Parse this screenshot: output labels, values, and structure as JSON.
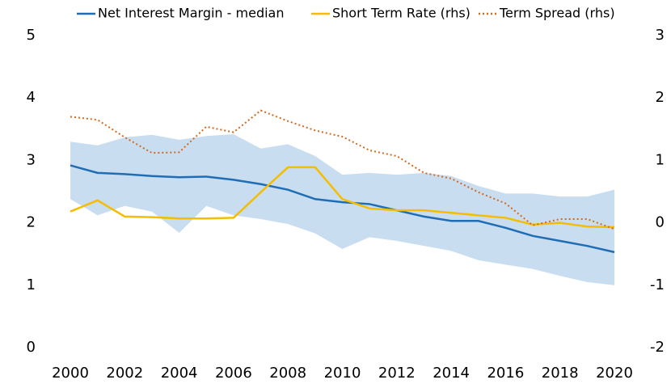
{
  "chart_data": {
    "type": "line",
    "x": [
      2000,
      2001,
      2002,
      2003,
      2004,
      2005,
      2006,
      2007,
      2008,
      2009,
      2010,
      2011,
      2012,
      2013,
      2014,
      2015,
      2016,
      2017,
      2018,
      2019,
      2020
    ],
    "xlim": [
      2000,
      2020
    ],
    "xticks": [
      2000,
      2002,
      2004,
      2006,
      2008,
      2010,
      2012,
      2014,
      2016,
      2018,
      2020
    ],
    "ylim": [
      0,
      5
    ],
    "yticks": [
      0,
      1,
      2,
      3,
      4,
      5
    ],
    "y2lim": [
      -2,
      3
    ],
    "y2ticks": [
      -2,
      -1,
      0,
      1,
      2,
      3
    ],
    "band": {
      "color": "#c9ddf1",
      "upper": [
        3.3,
        3.24,
        3.37,
        3.41,
        3.33,
        3.39,
        3.42,
        3.19,
        3.26,
        3.07,
        2.77,
        2.8,
        2.77,
        2.8,
        2.75,
        2.59,
        2.47,
        2.47,
        2.42,
        2.42,
        2.53
      ],
      "lower": [
        2.38,
        2.12,
        2.27,
        2.18,
        1.84,
        2.27,
        2.12,
        2.06,
        1.98,
        1.83,
        1.58,
        1.77,
        1.71,
        1.63,
        1.55,
        1.4,
        1.33,
        1.26,
        1.15,
        1.05,
        1.0
      ]
    },
    "series": [
      {
        "name": "Net Interest Margin - median",
        "color": "#1f6db4",
        "values": [
          2.92,
          2.8,
          2.78,
          2.75,
          2.73,
          2.74,
          2.69,
          2.62,
          2.53,
          2.38,
          2.33,
          2.3,
          2.2,
          2.1,
          2.03,
          2.03,
          1.92,
          1.79,
          1.71,
          1.63,
          1.53
        ]
      },
      {
        "name": "Short Term Rate (rhs)",
        "color": "#f5bd00",
        "axis": "y2",
        "values": [
          0.18,
          0.36,
          0.1,
          0.09,
          0.07,
          0.07,
          0.08,
          0.49,
          0.89,
          0.89,
          0.38,
          0.23,
          0.2,
          0.2,
          0.16,
          0.12,
          0.08,
          -0.03,
          0,
          -0.06,
          -0.07
        ]
      },
      {
        "name": "Term Spread (rhs)",
        "color": "#d2691e",
        "axis": "y2",
        "dash": "dotted",
        "values": [
          1.7,
          1.65,
          1.37,
          1.12,
          1.13,
          1.54,
          1.45,
          1.8,
          1.63,
          1.48,
          1.38,
          1.16,
          1.07,
          0.8,
          0.71,
          0.49,
          0.31,
          -0.04,
          0.06,
          0.06,
          -0.1
        ]
      }
    ]
  }
}
